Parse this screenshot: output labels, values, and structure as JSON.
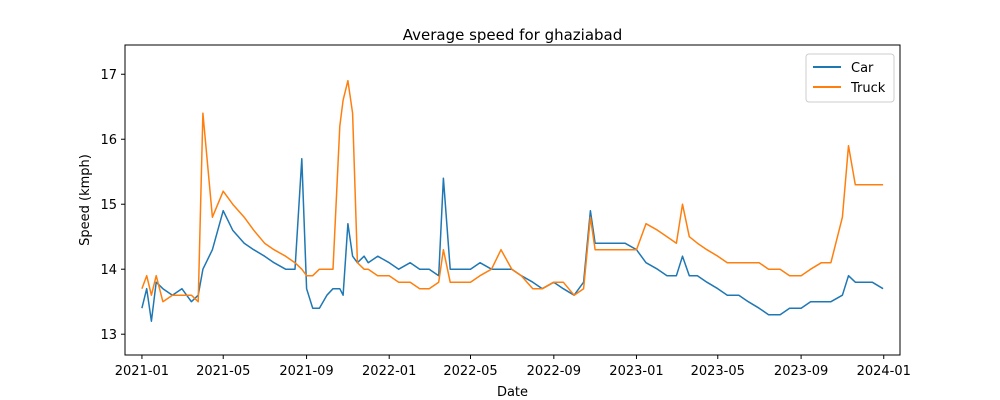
{
  "chart_data": {
    "type": "line",
    "title": "Average speed for ghaziabad",
    "xlabel": "Date",
    "ylabel": "Speed (kmph)",
    "xlim": [
      "2020-12-07",
      "2024-01-25"
    ],
    "ylim": [
      12.68,
      17.45
    ],
    "x_tick_labels": [
      "2021-01",
      "2021-05",
      "2021-09",
      "2022-01",
      "2022-05",
      "2022-09",
      "2023-01",
      "2023-05",
      "2023-09",
      "2024-01"
    ],
    "y_tick_labels": [
      "13",
      "14",
      "15",
      "16",
      "17"
    ],
    "grid": false,
    "legend_position": "top-right",
    "colors": {
      "car": "#1f77b4",
      "truck": "#ff7f0e"
    },
    "x": [
      "2021-01-01",
      "2021-01-08",
      "2021-01-15",
      "2021-01-22",
      "2021-02-01",
      "2021-02-15",
      "2021-03-01",
      "2021-03-15",
      "2021-03-25",
      "2021-04-01",
      "2021-04-15",
      "2021-05-01",
      "2021-05-15",
      "2021-06-01",
      "2021-06-15",
      "2021-07-01",
      "2021-07-15",
      "2021-08-01",
      "2021-08-15",
      "2021-08-25",
      "2021-09-01",
      "2021-09-10",
      "2021-09-20",
      "2021-10-01",
      "2021-10-10",
      "2021-10-20",
      "2021-10-25",
      "2021-11-01",
      "2021-11-08",
      "2021-11-15",
      "2021-11-25",
      "2021-12-01",
      "2021-12-15",
      "2022-01-01",
      "2022-01-15",
      "2022-02-01",
      "2022-02-15",
      "2022-03-01",
      "2022-03-15",
      "2022-03-22",
      "2022-04-01",
      "2022-04-15",
      "2022-05-01",
      "2022-05-15",
      "2022-06-01",
      "2022-06-15",
      "2022-07-01",
      "2022-07-15",
      "2022-08-01",
      "2022-08-15",
      "2022-09-01",
      "2022-09-15",
      "2022-10-01",
      "2022-10-15",
      "2022-10-25",
      "2022-11-01",
      "2022-11-15",
      "2022-12-01",
      "2022-12-15",
      "2023-01-01",
      "2023-01-15",
      "2023-02-01",
      "2023-02-15",
      "2023-03-01",
      "2023-03-10",
      "2023-03-20",
      "2023-04-01",
      "2023-04-15",
      "2023-05-01",
      "2023-05-15",
      "2023-06-01",
      "2023-06-15",
      "2023-07-01",
      "2023-07-15",
      "2023-08-01",
      "2023-08-15",
      "2023-09-01",
      "2023-09-15",
      "2023-10-01",
      "2023-10-15",
      "2023-11-01",
      "2023-11-10",
      "2023-11-20",
      "2023-12-01",
      "2023-12-15",
      "2023-12-31"
    ],
    "series": [
      {
        "name": "Car",
        "values": [
          13.4,
          13.7,
          13.2,
          13.8,
          13.7,
          13.6,
          13.7,
          13.5,
          13.6,
          14.0,
          14.3,
          14.9,
          14.6,
          14.4,
          14.3,
          14.2,
          14.1,
          14.0,
          14.0,
          15.7,
          13.7,
          13.4,
          13.4,
          13.6,
          13.7,
          13.7,
          13.6,
          14.7,
          14.2,
          14.1,
          14.2,
          14.1,
          14.2,
          14.1,
          14.0,
          14.1,
          14.0,
          14.0,
          13.9,
          15.4,
          14.0,
          14.0,
          14.0,
          14.1,
          14.0,
          14.0,
          14.0,
          13.9,
          13.8,
          13.7,
          13.8,
          13.7,
          13.6,
          13.8,
          14.9,
          14.4,
          14.4,
          14.4,
          14.4,
          14.3,
          14.1,
          14.0,
          13.9,
          13.9,
          14.2,
          13.9,
          13.9,
          13.8,
          13.7,
          13.6,
          13.6,
          13.5,
          13.4,
          13.3,
          13.3,
          13.4,
          13.4,
          13.5,
          13.5,
          13.5,
          13.6,
          13.9,
          13.8,
          13.8,
          13.8,
          13.7
        ]
      },
      {
        "name": "Truck",
        "values": [
          13.7,
          13.9,
          13.6,
          13.9,
          13.5,
          13.6,
          13.6,
          13.6,
          13.5,
          16.4,
          14.8,
          15.2,
          15.0,
          14.8,
          14.6,
          14.4,
          14.3,
          14.2,
          14.1,
          14.0,
          13.9,
          13.9,
          14.0,
          14.0,
          14.0,
          16.2,
          16.6,
          16.9,
          16.4,
          14.1,
          14.0,
          14.0,
          13.9,
          13.9,
          13.8,
          13.8,
          13.7,
          13.7,
          13.8,
          14.3,
          13.8,
          13.8,
          13.8,
          13.9,
          14.0,
          14.3,
          14.0,
          13.9,
          13.7,
          13.7,
          13.8,
          13.8,
          13.6,
          13.7,
          14.8,
          14.3,
          14.3,
          14.3,
          14.3,
          14.3,
          14.7,
          14.6,
          14.5,
          14.4,
          15.0,
          14.5,
          14.4,
          14.3,
          14.2,
          14.1,
          14.1,
          14.1,
          14.1,
          14.0,
          14.0,
          13.9,
          13.9,
          14.0,
          14.1,
          14.1,
          14.8,
          15.9,
          15.3,
          15.3,
          15.3,
          15.3
        ]
      }
    ]
  }
}
